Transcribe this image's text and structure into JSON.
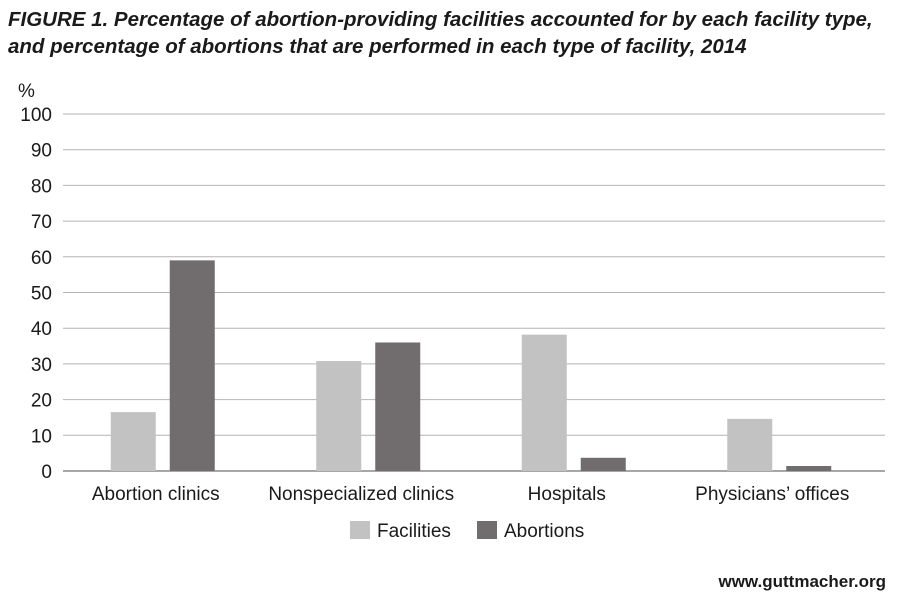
{
  "chart_data": {
    "type": "bar",
    "title": "FIGURE 1. Percentage of abortion-providing facilities accounted for by each facility type, and percentage of abortions that are performed in each type of facility, 2014",
    "ylabel": "%",
    "xlabel": "",
    "ylim": [
      0,
      100
    ],
    "yticks": [
      "0",
      "10",
      "20",
      "30",
      "40",
      "50",
      "60",
      "70",
      "80",
      "90",
      "100"
    ],
    "grid": true,
    "legend_position": "bottom-center",
    "categories": [
      "Abortion clinics",
      "Nonspecialized clinics",
      "Hospitals",
      "Physicians’ offices"
    ],
    "series": [
      {
        "name": "Facilities",
        "color": "#c2c2c2",
        "values": [
          16.5,
          30.8,
          38.2,
          14.6
        ]
      },
      {
        "name": "Abortions",
        "color": "#716d6e",
        "values": [
          59,
          36,
          3.7,
          1.4
        ]
      }
    ]
  },
  "footer": {
    "url": "www.guttmacher.org"
  }
}
